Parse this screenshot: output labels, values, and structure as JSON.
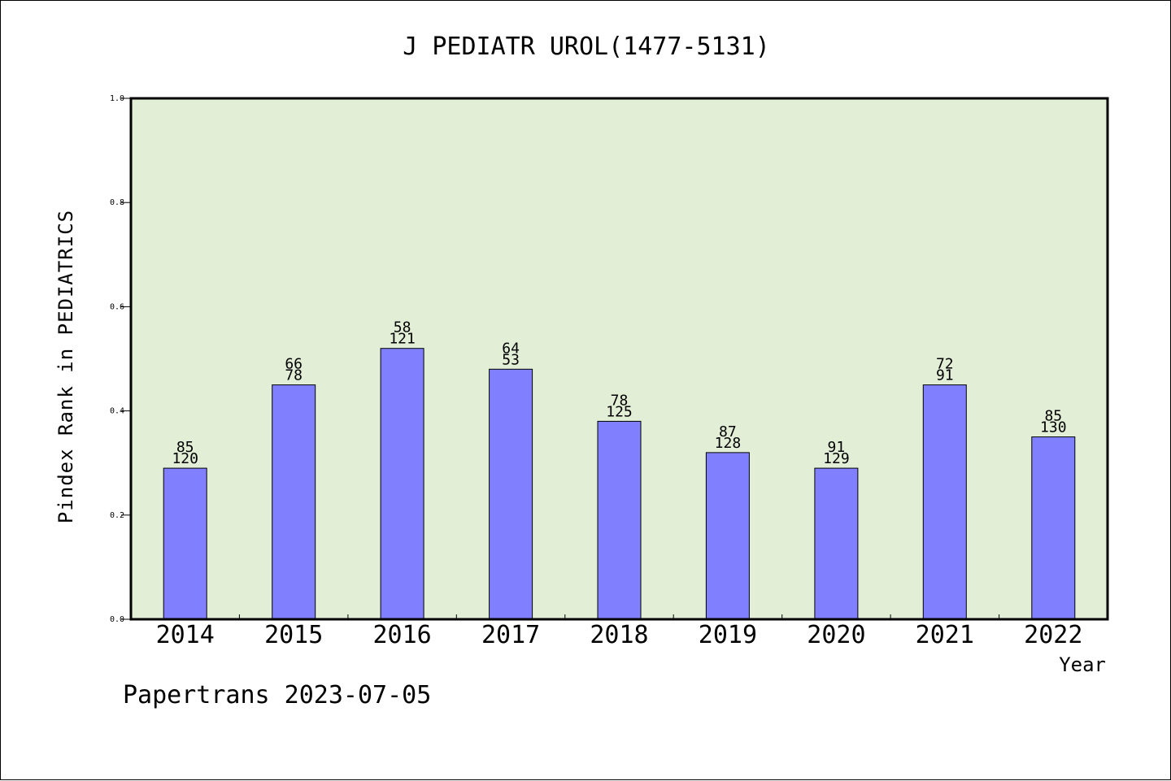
{
  "chart_data": {
    "type": "bar",
    "title": "J PEDIATR UROL(1477-5131)",
    "xlabel": "Year",
    "ylabel": "Pindex Rank in PEDIATRICS",
    "categories": [
      "2014",
      "2015",
      "2016",
      "2017",
      "2018",
      "2019",
      "2020",
      "2021",
      "2022"
    ],
    "values": [
      0.29,
      0.45,
      0.52,
      0.48,
      0.38,
      0.32,
      0.29,
      0.45,
      0.35
    ],
    "labels_top": [
      "85",
      "66",
      "58",
      "64",
      "78",
      "87",
      "91",
      "72",
      "85"
    ],
    "labels_bottom": [
      "120",
      "78",
      "121",
      "53",
      "125",
      "128",
      "129",
      "91",
      "130"
    ],
    "ylim": [
      0,
      1.0
    ],
    "yticks": [
      "0.0",
      "0.2",
      "0.4",
      "0.6",
      "0.8",
      "1.0"
    ],
    "grid": false,
    "colors": {
      "plot_bg": "#e2efd6",
      "bar": "#8080ff"
    }
  },
  "footer": "Papertrans 2023-07-05"
}
